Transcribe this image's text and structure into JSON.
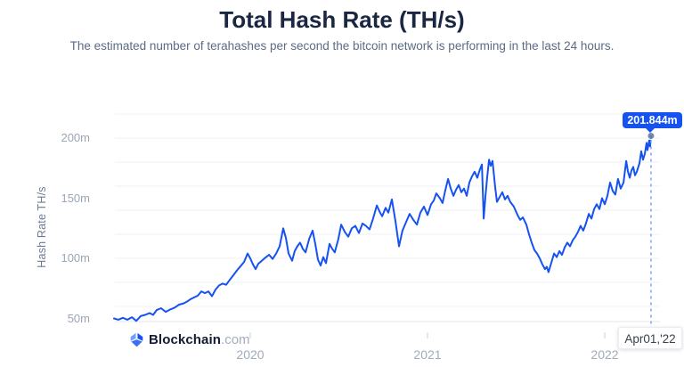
{
  "page": {
    "title": "Total Hash Rate (TH/s)",
    "subtitle": "The estimated number of terahashes per second the bitcoin network is performing in the last 24 hours."
  },
  "branding": {
    "logo_icon": "blockchain-cube-icon",
    "logo_text": "Blockchain",
    "logo_suffix": ".com",
    "logo_colors": {
      "left": "#6f9ff8",
      "right": "#1652f0",
      "bottom": "#3d6ef5"
    }
  },
  "chart_data": {
    "type": "line",
    "title": "Total Hash Rate (TH/s)",
    "xlabel": "",
    "ylabel": "Hash Rate TH/s",
    "legend": "none",
    "grid": "horizontal",
    "colors": {
      "line": "#1652f0",
      "gridline": "#eef1f5",
      "axis_line": "#e0e5eb",
      "tick": "#c8ced8",
      "y_label": "#9aa6b7",
      "x_label": "#a0abbc",
      "crosshair": "#7aa0f5",
      "marker": "rgba(105,126,160,0.9)",
      "tooltip_bg": "#1652f0",
      "tooltip_text": "#ffffff"
    },
    "y_axis": {
      "title": "Hash Rate TH/s",
      "labels": [
        {
          "value": 50,
          "label": "50m"
        },
        {
          "value": 100,
          "label": "100m"
        },
        {
          "value": 150,
          "label": "150m"
        },
        {
          "value": 200,
          "label": "200m"
        }
      ],
      "gridline_values": [
        60,
        80,
        100,
        120,
        140,
        160,
        180,
        200,
        220
      ],
      "range_shown": [
        46,
        222
      ]
    },
    "x_axis": {
      "ticks": [
        {
          "value": 2020,
          "label": "2020"
        },
        {
          "value": 2021,
          "label": "2021"
        },
        {
          "value": 2022,
          "label": "2022"
        }
      ],
      "range_shown": [
        2019.23,
        2022.31
      ]
    },
    "tooltip": {
      "value_label": "201.844m"
    },
    "crosshair": {
      "x_label": "Apr01,'22"
    },
    "last_point": {
      "t": 2022.261,
      "value": 201.844,
      "value_label": "201.844m",
      "date_label": "Apr01,'22"
    },
    "series": [
      {
        "name": "Total Hash Rate",
        "color": "#1652f0",
        "points": [
          [
            2019.231,
            50
          ],
          [
            2019.256,
            49
          ],
          [
            2019.281,
            50.5
          ],
          [
            2019.307,
            49
          ],
          [
            2019.332,
            51
          ],
          [
            2019.357,
            48
          ],
          [
            2019.382,
            52
          ],
          [
            2019.407,
            53
          ],
          [
            2019.432,
            54.5
          ],
          [
            2019.452,
            53
          ],
          [
            2019.472,
            57
          ],
          [
            2019.497,
            58.5
          ],
          [
            2019.523,
            55.5
          ],
          [
            2019.548,
            57.5
          ],
          [
            2019.573,
            59
          ],
          [
            2019.598,
            61.5
          ],
          [
            2019.623,
            62.5
          ],
          [
            2019.643,
            64
          ],
          [
            2019.663,
            66
          ],
          [
            2019.683,
            67.5
          ],
          [
            2019.704,
            69
          ],
          [
            2019.724,
            72.5
          ],
          [
            2019.744,
            71
          ],
          [
            2019.764,
            72.5
          ],
          [
            2019.784,
            68.5
          ],
          [
            2019.804,
            74
          ],
          [
            2019.824,
            77.5
          ],
          [
            2019.844,
            79
          ],
          [
            2019.864,
            78
          ],
          [
            2019.884,
            82
          ],
          [
            2019.905,
            86
          ],
          [
            2019.925,
            90
          ],
          [
            2019.945,
            93.5
          ],
          [
            2019.965,
            97
          ],
          [
            2019.985,
            104
          ],
          [
            2020.0,
            100
          ],
          [
            2020.015,
            95
          ],
          [
            2020.03,
            91
          ],
          [
            2020.045,
            95.5
          ],
          [
            2020.065,
            98
          ],
          [
            2020.085,
            100.5
          ],
          [
            2020.106,
            103
          ],
          [
            2020.126,
            99.5
          ],
          [
            2020.146,
            104
          ],
          [
            2020.166,
            110
          ],
          [
            2020.186,
            125
          ],
          [
            2020.201,
            117
          ],
          [
            2020.216,
            104
          ],
          [
            2020.236,
            98
          ],
          [
            2020.251,
            106
          ],
          [
            2020.266,
            110
          ],
          [
            2020.281,
            113
          ],
          [
            2020.296,
            108
          ],
          [
            2020.312,
            105
          ],
          [
            2020.332,
            116
          ],
          [
            2020.352,
            123
          ],
          [
            2020.367,
            112
          ],
          [
            2020.382,
            99
          ],
          [
            2020.397,
            94
          ],
          [
            2020.412,
            101
          ],
          [
            2020.427,
            96
          ],
          [
            2020.447,
            112
          ],
          [
            2020.462,
            108
          ],
          [
            2020.477,
            105
          ],
          [
            2020.497,
            116
          ],
          [
            2020.513,
            128
          ],
          [
            2020.533,
            122
          ],
          [
            2020.553,
            118
          ],
          [
            2020.573,
            125
          ],
          [
            2020.593,
            127
          ],
          [
            2020.613,
            121
          ],
          [
            2020.633,
            129
          ],
          [
            2020.653,
            127
          ],
          [
            2020.673,
            124
          ],
          [
            2020.693,
            133
          ],
          [
            2020.714,
            144
          ],
          [
            2020.729,
            139
          ],
          [
            2020.744,
            135
          ],
          [
            2020.764,
            142
          ],
          [
            2020.779,
            138
          ],
          [
            2020.799,
            149
          ],
          [
            2020.819,
            131
          ],
          [
            2020.839,
            110
          ],
          [
            2020.859,
            123
          ],
          [
            2020.879,
            130
          ],
          [
            2020.899,
            137
          ],
          [
            2020.92,
            132
          ],
          [
            2020.94,
            128
          ],
          [
            2020.96,
            138
          ],
          [
            2020.98,
            143
          ],
          [
            2021.0,
            136
          ],
          [
            2021.02,
            145
          ],
          [
            2021.035,
            148
          ],
          [
            2021.05,
            154
          ],
          [
            2021.07,
            150
          ],
          [
            2021.085,
            146
          ],
          [
            2021.101,
            157
          ],
          [
            2021.116,
            166
          ],
          [
            2021.131,
            158
          ],
          [
            2021.146,
            152
          ],
          [
            2021.161,
            157
          ],
          [
            2021.176,
            161
          ],
          [
            2021.191,
            155
          ],
          [
            2021.206,
            158
          ],
          [
            2021.221,
            152
          ],
          [
            2021.236,
            163
          ],
          [
            2021.251,
            168
          ],
          [
            2021.266,
            172
          ],
          [
            2021.281,
            167
          ],
          [
            2021.296,
            174
          ],
          [
            2021.307,
            178
          ],
          [
            2021.317,
            133
          ],
          [
            2021.327,
            152
          ],
          [
            2021.337,
            168
          ],
          [
            2021.347,
            182
          ],
          [
            2021.357,
            177
          ],
          [
            2021.367,
            181
          ],
          [
            2021.382,
            159
          ],
          [
            2021.392,
            147
          ],
          [
            2021.407,
            151
          ],
          [
            2021.422,
            155
          ],
          [
            2021.437,
            149
          ],
          [
            2021.452,
            152
          ],
          [
            2021.467,
            147
          ],
          [
            2021.487,
            143
          ],
          [
            2021.508,
            136
          ],
          [
            2021.523,
            132
          ],
          [
            2021.538,
            134
          ],
          [
            2021.558,
            128
          ],
          [
            2021.573,
            120
          ],
          [
            2021.588,
            113
          ],
          [
            2021.603,
            107
          ],
          [
            2021.618,
            104
          ],
          [
            2021.633,
            100
          ],
          [
            2021.648,
            95
          ],
          [
            2021.663,
            91
          ],
          [
            2021.673,
            93
          ],
          [
            2021.683,
            88.5
          ],
          [
            2021.698,
            96
          ],
          [
            2021.714,
            104
          ],
          [
            2021.729,
            101
          ],
          [
            2021.744,
            106
          ],
          [
            2021.759,
            103
          ],
          [
            2021.774,
            109
          ],
          [
            2021.789,
            113
          ],
          [
            2021.804,
            110
          ],
          [
            2021.819,
            115
          ],
          [
            2021.834,
            118
          ],
          [
            2021.849,
            122
          ],
          [
            2021.864,
            127
          ],
          [
            2021.879,
            123
          ],
          [
            2021.894,
            129
          ],
          [
            2021.91,
            137
          ],
          [
            2021.925,
            133
          ],
          [
            2021.94,
            141
          ],
          [
            2021.955,
            145
          ],
          [
            2021.97,
            141
          ],
          [
            2021.985,
            150
          ],
          [
            2022.0,
            145
          ],
          [
            2022.015,
            152
          ],
          [
            2022.03,
            163
          ],
          [
            2022.045,
            156
          ],
          [
            2022.06,
            153
          ],
          [
            2022.075,
            166
          ],
          [
            2022.09,
            158
          ],
          [
            2022.106,
            163
          ],
          [
            2022.121,
            181
          ],
          [
            2022.131,
            172
          ],
          [
            2022.141,
            167
          ],
          [
            2022.151,
            173
          ],
          [
            2022.161,
            176
          ],
          [
            2022.171,
            169
          ],
          [
            2022.181,
            172
          ],
          [
            2022.196,
            179
          ],
          [
            2022.206,
            189
          ],
          [
            2022.216,
            182
          ],
          [
            2022.226,
            187
          ],
          [
            2022.236,
            196
          ],
          [
            2022.241,
            190
          ],
          [
            2022.246,
            194
          ],
          [
            2022.251,
            198
          ],
          [
            2022.256,
            193
          ],
          [
            2022.261,
            201.844
          ]
        ]
      }
    ]
  }
}
